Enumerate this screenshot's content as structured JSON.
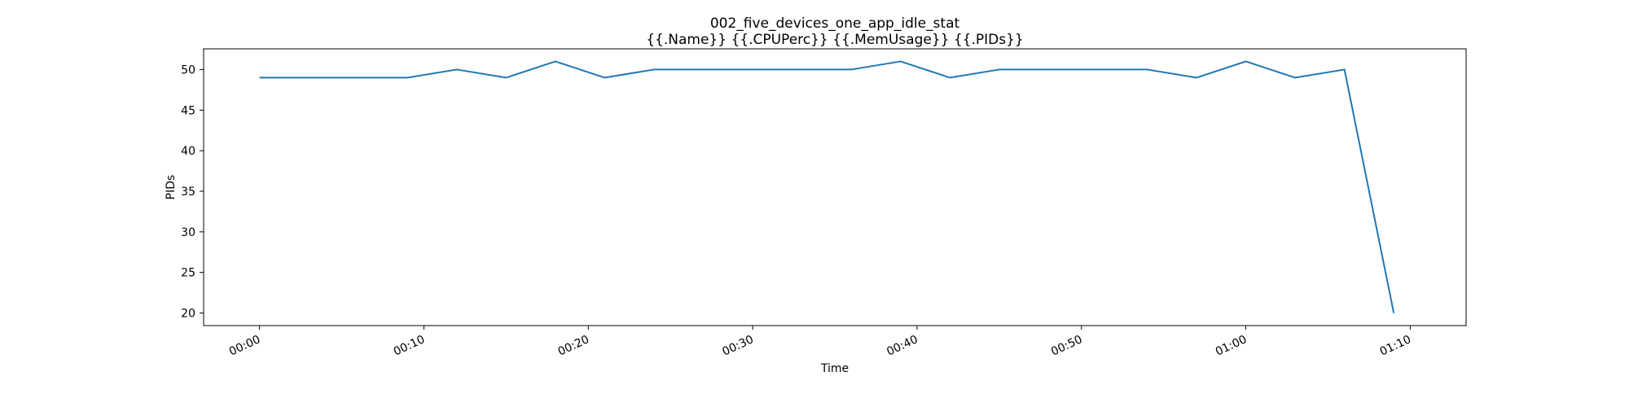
{
  "chart_data": {
    "type": "line",
    "title": "002_five_devices_one_app_idle_stat",
    "subtitle": "{{.Name}} {{.CPUPerc}} {{.MemUsage}}  {{.PIDs}}",
    "xlabel": "Time",
    "ylabel": "PIDs",
    "x_ticks": [
      "00:00",
      "00:10",
      "00:20",
      "00:30",
      "00:40",
      "00:50",
      "01:00",
      "01:10"
    ],
    "y_ticks": [
      20,
      25,
      30,
      35,
      40,
      45,
      50
    ],
    "xlim": [
      "-00:03.4",
      "01:13.4"
    ],
    "ylim": [
      18.45,
      52.55
    ],
    "grid": false,
    "series": [
      {
        "x": [
          "00:00",
          "00:03",
          "00:06",
          "00:09",
          "00:12",
          "00:15",
          "00:18",
          "00:21",
          "00:24",
          "00:27",
          "00:30",
          "00:33",
          "00:36",
          "00:39",
          "00:42",
          "00:45",
          "00:48",
          "00:51",
          "00:54",
          "00:57",
          "01:00",
          "01:03",
          "01:06",
          "01:09"
        ],
        "values": [
          49,
          49,
          49,
          49,
          50,
          49,
          51,
          49,
          50,
          50,
          50,
          50,
          50,
          51,
          49,
          50,
          50,
          50,
          50,
          49,
          51,
          49,
          50,
          20
        ],
        "color": "#1f77b4"
      }
    ]
  }
}
